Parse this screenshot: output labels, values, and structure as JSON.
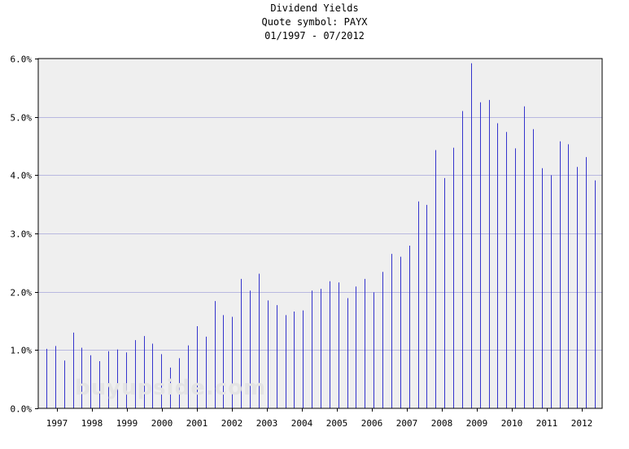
{
  "page_title": {
    "line1": "Dividend Yields",
    "line2": "Quote symbol: PAYX",
    "line3": "01/1997 - 07/2012"
  },
  "watermark": "buyupside.com",
  "colors": {
    "plot_background": "#efefef",
    "bar": "#3333cc",
    "grid": "#b8b8e0",
    "axis": "#000000"
  },
  "chart_data": {
    "type": "bar",
    "title": "Dividend Yields",
    "subtitle": "Quote symbol: PAYX",
    "date_range": "01/1997 - 07/2012",
    "xlabel": "",
    "ylabel": "",
    "ylim": [
      0,
      6
    ],
    "y_ticks": [
      "0.0%",
      "1.0%",
      "2.0%",
      "3.0%",
      "4.0%",
      "5.0%",
      "6.0%"
    ],
    "x_ticks": [
      "1997",
      "1998",
      "1999",
      "2000",
      "2001",
      "2002",
      "2003",
      "2004",
      "2005",
      "2006",
      "2007",
      "2008",
      "2009",
      "2010",
      "2011",
      "2012"
    ],
    "grid": true,
    "values": [
      1.02,
      1.07,
      0.82,
      1.3,
      1.04,
      0.91,
      0.81,
      0.98,
      1.01,
      0.96,
      1.17,
      1.24,
      1.11,
      0.93,
      0.7,
      0.86,
      1.08,
      1.41,
      1.23,
      1.84,
      1.6,
      1.57,
      2.22,
      2.02,
      2.31,
      1.85,
      1.77,
      1.6,
      1.66,
      1.68,
      2.02,
      2.05,
      2.18,
      2.16,
      1.89,
      2.09,
      2.22,
      1.99,
      2.34,
      2.65,
      2.6,
      2.79,
      3.55,
      3.49,
      4.43,
      3.95,
      4.47,
      5.1,
      5.92,
      5.25,
      5.29,
      4.89,
      4.74,
      4.46,
      5.18,
      4.79,
      4.12,
      4.0,
      4.58,
      4.53,
      4.14,
      4.31,
      3.91
    ]
  }
}
